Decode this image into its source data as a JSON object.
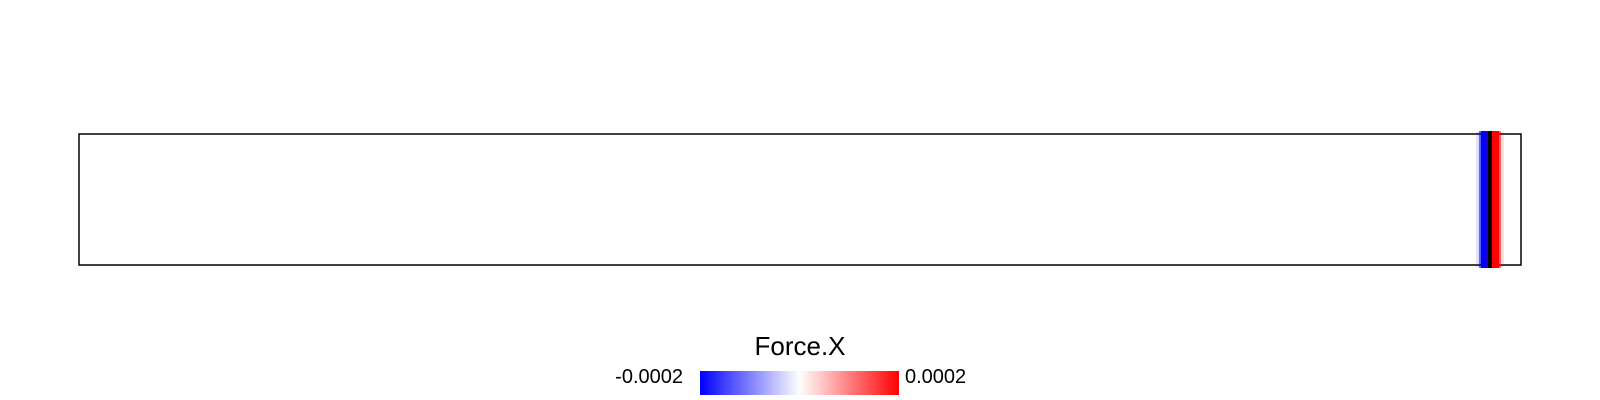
{
  "chart_data": {
    "type": "heatmap",
    "title": "",
    "xlabel": "",
    "ylabel": "",
    "grid": false,
    "colorbar": {
      "title": "Force.X",
      "min_label": "-0.0002",
      "max_label": "0.0002",
      "min": -0.0002,
      "max": 0.0002,
      "colors": [
        "#0000ff",
        "#ffffff",
        "#ff0000"
      ],
      "position": "bottom-center"
    },
    "domain": {
      "x_extent": 1,
      "y_extent": 1
    },
    "field": {
      "description_units": "normalized domain coordinates",
      "bands": [
        {
          "x_center": 0.975,
          "value": -0.0002
        },
        {
          "x_center": 0.982,
          "value": 0.0002
        }
      ]
    }
  }
}
